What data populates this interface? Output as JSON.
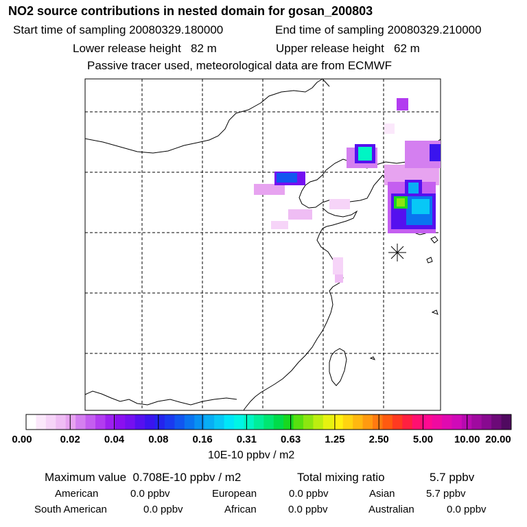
{
  "header": {
    "title": "NO2 source contributions in nested domain for gosan_200803",
    "start_label": "Start time of sampling",
    "start_value": "20080329.180000",
    "end_label": "End time of sampling",
    "end_value": "20080329.210000",
    "lower_label": "Lower release height",
    "lower_value": "82 m",
    "upper_label": "Upper release height",
    "upper_value": "62 m",
    "note": "Passive tracer used, meteorological data are from ECMWF"
  },
  "colorbar": {
    "ticks": [
      "0.00",
      "0.02",
      "0.04",
      "0.08",
      "0.16",
      "0.31",
      "0.63",
      "1.25",
      "2.50",
      "5.00",
      "10.00",
      "20.00"
    ],
    "unit": "10E-10 ppbv / m2",
    "colors": [
      "#ffffff",
      "#fbe8fb",
      "#f6d4f8",
      "#efbdf4",
      "#e7a3f0",
      "#d47ff0",
      "#c45ef0",
      "#b23cf0",
      "#9d20f0",
      "#8a10f0",
      "#7410f0",
      "#5510ef",
      "#3a14ee",
      "#2424ee",
      "#1a3af0",
      "#1156f0",
      "#0a74f0",
      "#0891f2",
      "#08aef4",
      "#08c8f6",
      "#00e6f8",
      "#00f5e6",
      "#00f5c4",
      "#00ee9a",
      "#00e672",
      "#00dc4a",
      "#18d820",
      "#58e010",
      "#8ce610",
      "#bcee10",
      "#e6f210",
      "#fff010",
      "#ffd410",
      "#ffb810",
      "#ff9a10",
      "#ff7a10",
      "#ff5a10",
      "#ff3a20",
      "#ff2040",
      "#ff1070",
      "#ff0a90",
      "#f00aa0",
      "#e00ab0",
      "#d00ab8",
      "#b80ab0",
      "#a00aa0",
      "#880a90",
      "#6c0a78",
      "#500a60"
    ]
  },
  "stats": {
    "max_label": "Maximum value",
    "max_value": "0.708E-10 ppbv / m2",
    "total_label": "Total mixing ratio",
    "total_value": "5.7 ppbv"
  },
  "regions": [
    {
      "name": "American",
      "value": "0.0 ppbv"
    },
    {
      "name": "European",
      "value": "0.0 ppbv"
    },
    {
      "name": "Asian",
      "value": "5.7 ppbv"
    },
    {
      "name": "South American",
      "value": "0.0 ppbv"
    },
    {
      "name": "African",
      "value": "0.0 ppbv"
    },
    {
      "name": "Australian",
      "value": "0.0 ppbv"
    }
  ]
}
